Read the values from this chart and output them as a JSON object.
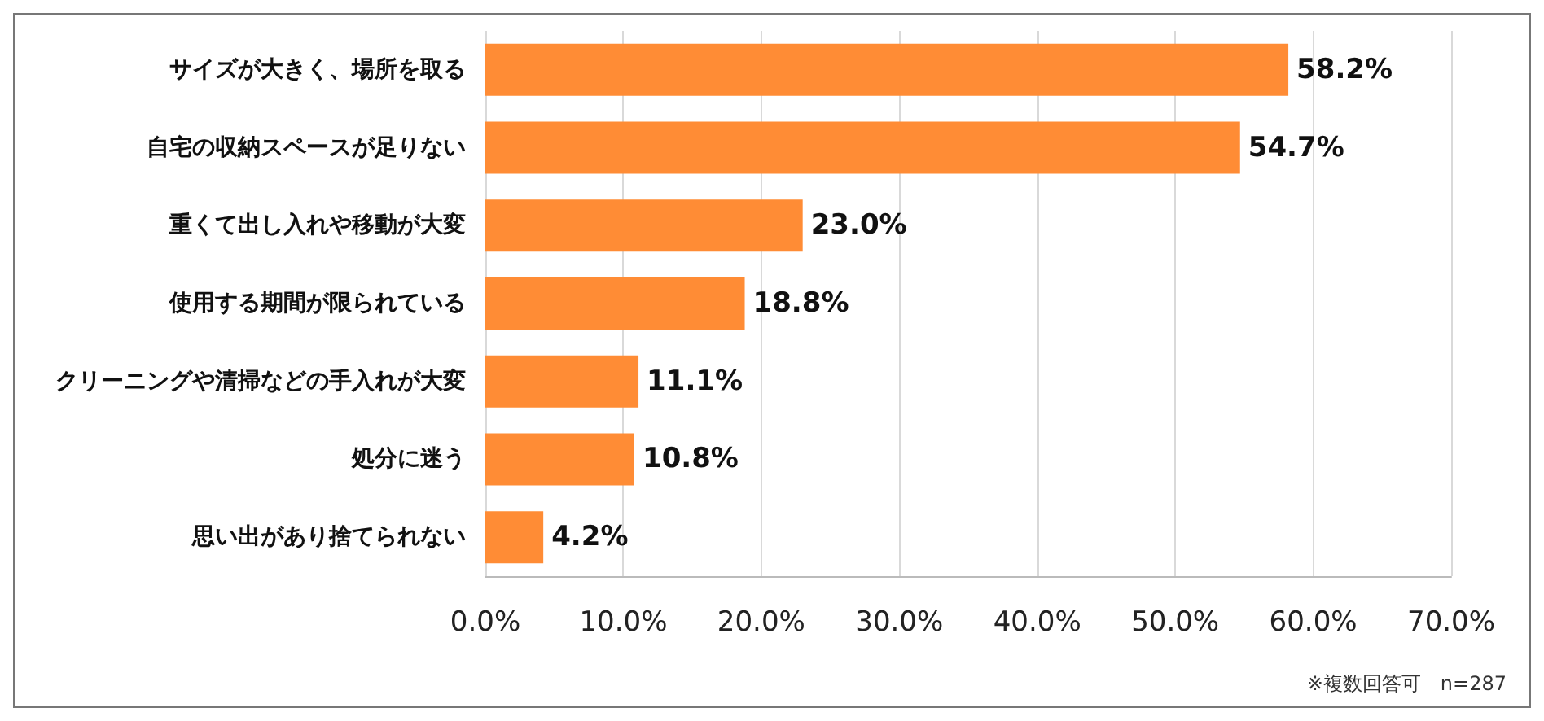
{
  "chart_data": {
    "type": "bar",
    "orientation": "horizontal",
    "categories": [
      "サイズが大きく、場所を取る",
      "自宅の収納スペースが足りない",
      "重くて出し入れや移動が大変",
      "使用する期間が限られている",
      "クリーニングや清掃などの手入れが大変",
      "処分に迷う",
      "思い出があり捨てられない"
    ],
    "values": [
      58.2,
      54.7,
      23.0,
      18.8,
      11.1,
      10.8,
      4.2
    ],
    "value_labels": [
      "58.2%",
      "54.7%",
      "23.0%",
      "18.8%",
      "11.1%",
      "10.8%",
      "4.2%"
    ],
    "color": "#ff8c35",
    "xlim": [
      0,
      70
    ],
    "xticks": [
      {
        "value": 0,
        "label": "0.0%"
      },
      {
        "value": 10,
        "label": "10.0%"
      },
      {
        "value": 20,
        "label": "20.0%"
      },
      {
        "value": 30,
        "label": "30.0%"
      },
      {
        "value": 40,
        "label": "40.0%"
      },
      {
        "value": 50,
        "label": "50.0%"
      },
      {
        "value": 60,
        "label": "60.0%"
      },
      {
        "value": 70,
        "label": "70.0%"
      }
    ],
    "grid": "x",
    "annotations": [
      "※複数回答可　n=287"
    ]
  }
}
